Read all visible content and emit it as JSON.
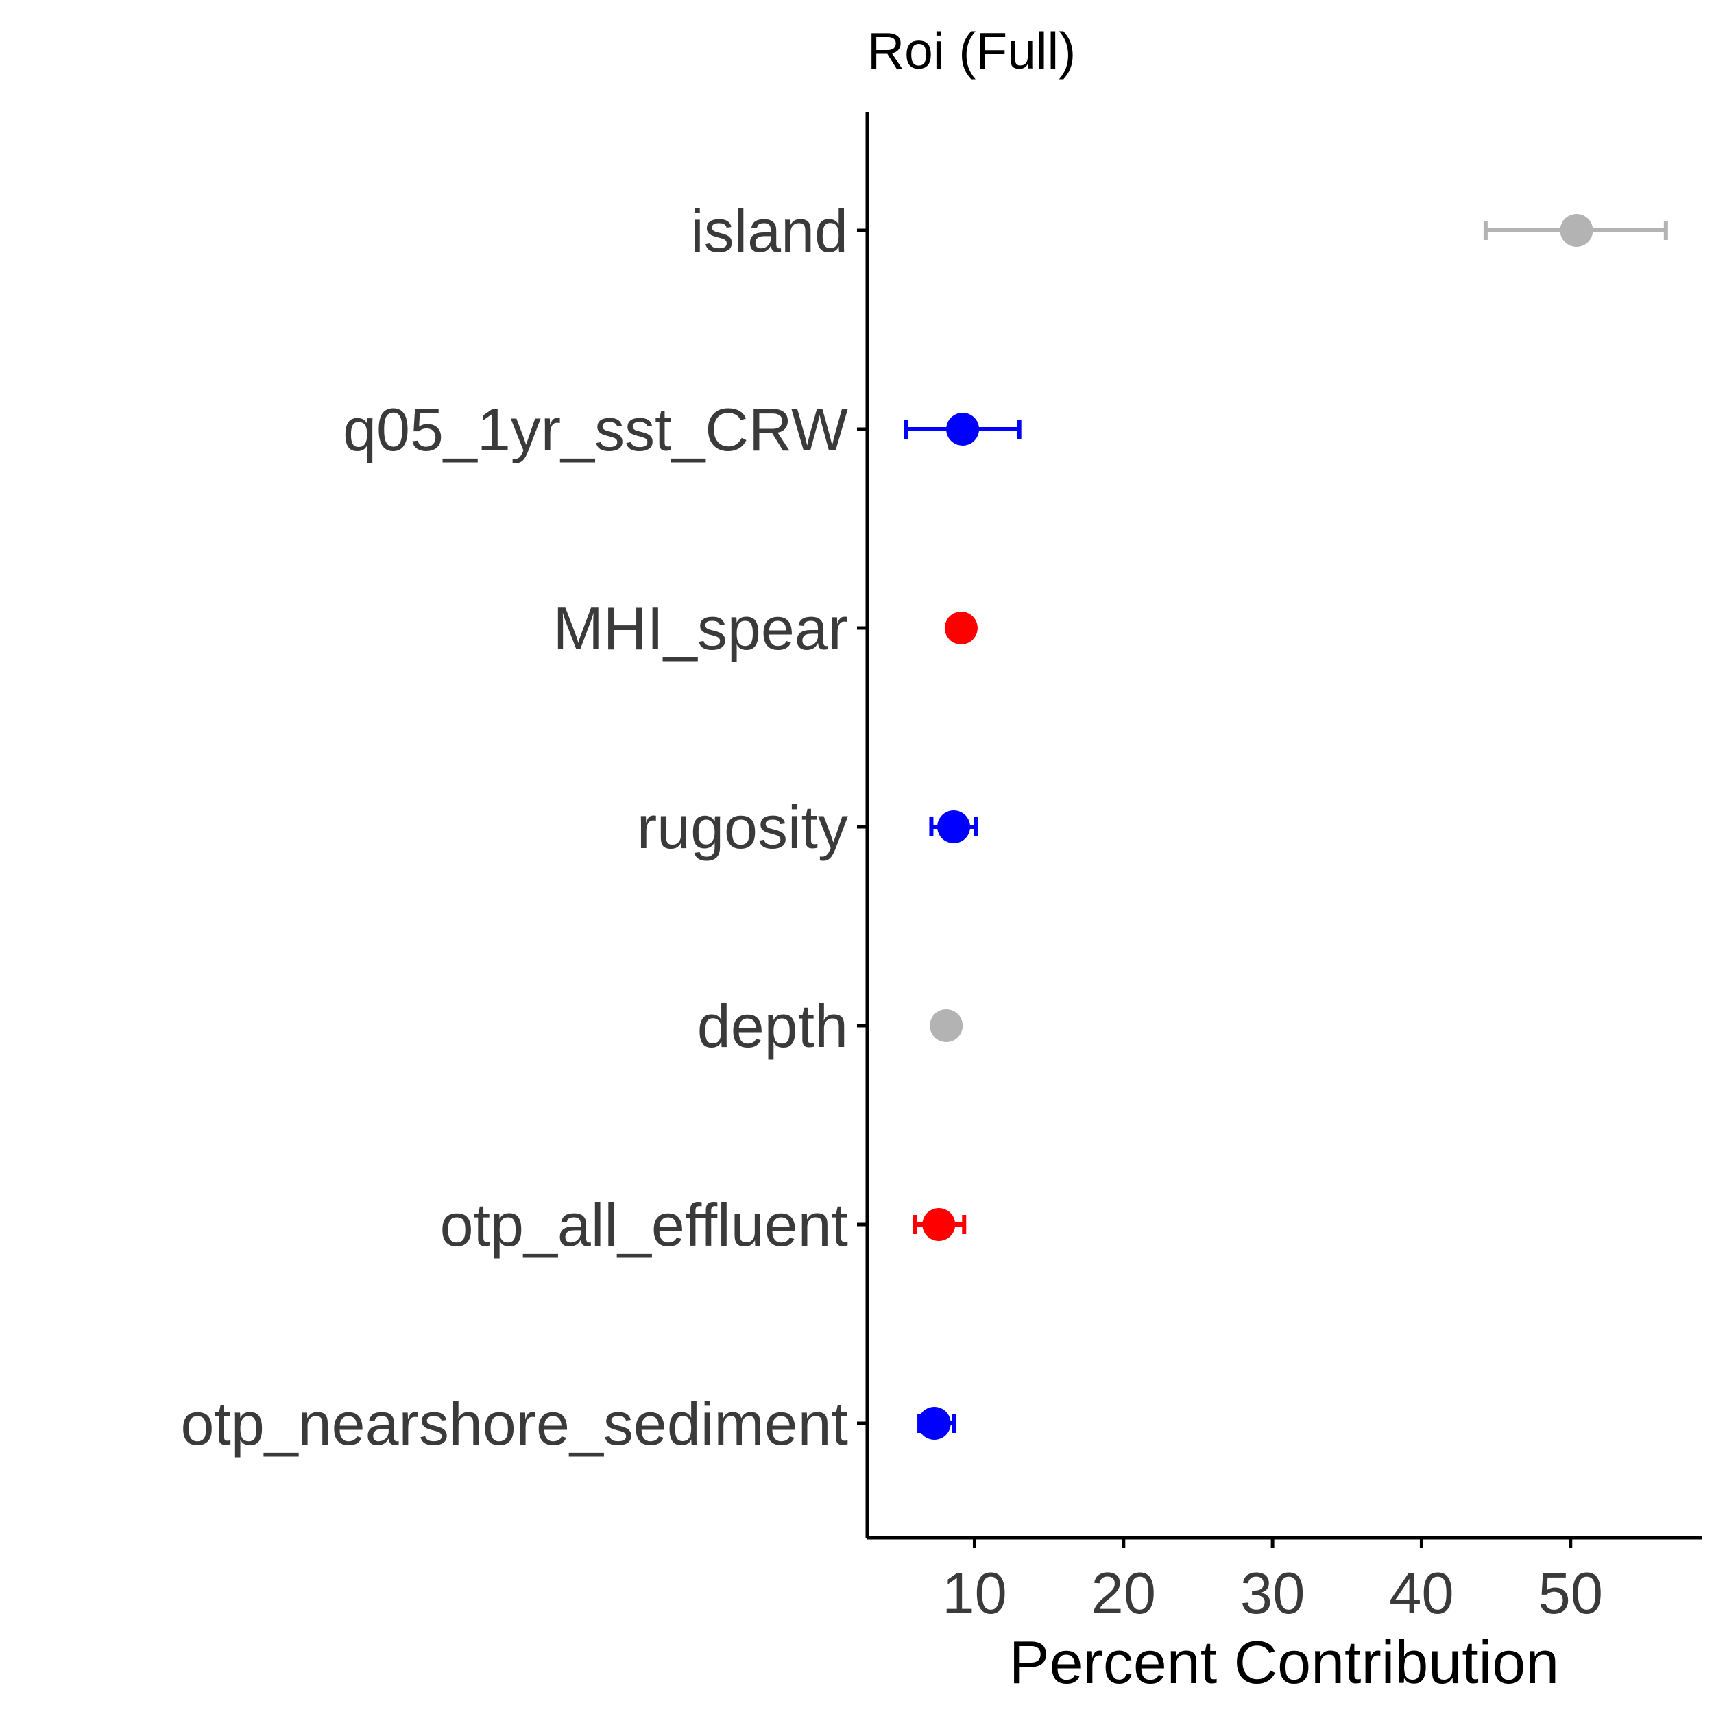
{
  "chart_data": {
    "type": "scatter",
    "title": "Roi (Full)",
    "xlabel": "Percent Contribution",
    "ylabel": "",
    "xlim": [
      2.8,
      58.8
    ],
    "xticks": [
      10,
      20,
      30,
      40,
      50
    ],
    "xtick_labels": [
      "10",
      "20",
      "30",
      "40",
      "50"
    ],
    "grid": false,
    "legend": "none",
    "categories": [
      "island",
      "q05_1yr_sst_CRW",
      "MHI_spear",
      "rugosity",
      "depth",
      "otp_all_effluent",
      "otp_nearshore_sediment"
    ],
    "points": [
      {
        "category": "island",
        "value": 50.4,
        "lower": 44.3,
        "upper": 56.4,
        "color": "#b3b3b3"
      },
      {
        "category": "q05_1yr_sst_CRW",
        "value": 9.2,
        "lower": 5.4,
        "upper": 13.0,
        "color": "#0000ff"
      },
      {
        "category": "MHI_spear",
        "value": 9.1,
        "lower": 8.4,
        "upper": 9.8,
        "color": "#ff0000"
      },
      {
        "category": "rugosity",
        "value": 8.6,
        "lower": 7.1,
        "upper": 10.1,
        "color": "#0000ff"
      },
      {
        "category": "depth",
        "value": 8.1,
        "lower": 8.1,
        "upper": 8.1,
        "color": "#b3b3b3"
      },
      {
        "category": "otp_all_effluent",
        "value": 7.6,
        "lower": 6.0,
        "upper": 9.3,
        "color": "#ff0000"
      },
      {
        "category": "otp_nearshore_sediment",
        "value": 7.3,
        "lower": 6.3,
        "upper": 8.6,
        "color": "#0000ff"
      }
    ]
  }
}
